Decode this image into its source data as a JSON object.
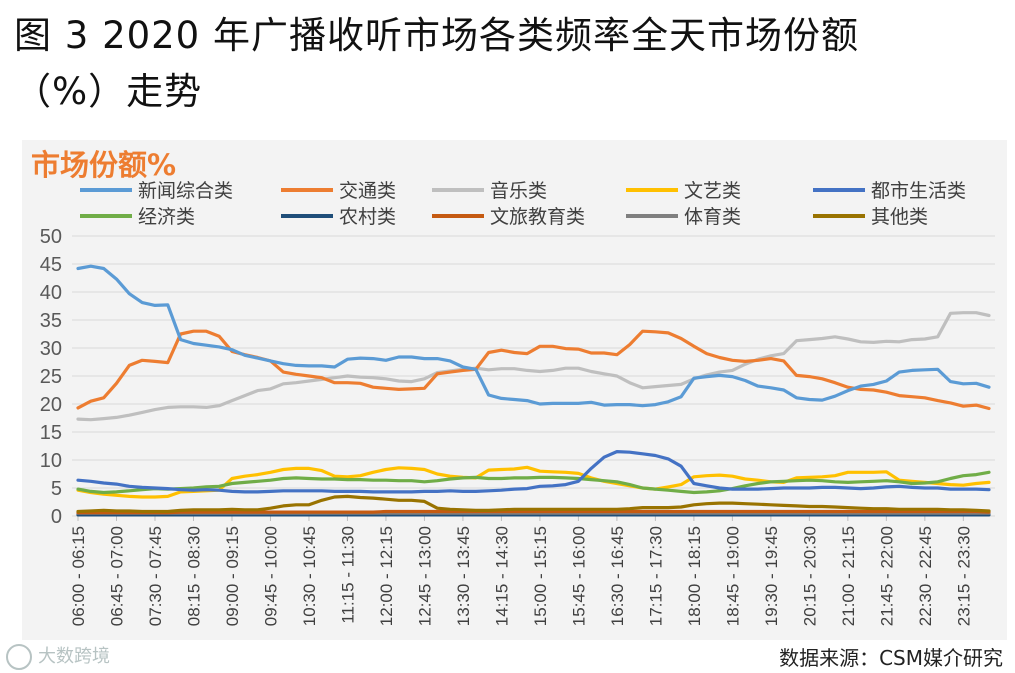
{
  "page": {
    "title_line1": "图 3  2020 年广播收听市场各类频率全天市场份额",
    "title_line2": "（%）走势",
    "source": "数据来源：CSM媒介研究",
    "watermark": "大数跨境"
  },
  "chart_data": {
    "type": "line",
    "title": "",
    "ylabel": "市场份额%",
    "xlabel": "",
    "ylim": [
      0,
      50
    ],
    "yticks": [
      0,
      5,
      10,
      15,
      20,
      25,
      30,
      35,
      40,
      45,
      50
    ],
    "grid": true,
    "legend_position": "top",
    "x_tick_labels": [
      "06:00 - 06:15",
      "06:45 - 07:00",
      "07:30 - 07:45",
      "08:15 - 08:30",
      "09:00 - 09:15",
      "09:45 - 10:00",
      "10:30 - 10:45",
      "11:15 - 11:30",
      "12:00 - 12:15",
      "12:45 - 13:00",
      "13:30 - 13:45",
      "14:15 - 14:30",
      "15:00 - 15:15",
      "15:45 - 16:00",
      "16:30 - 16:45",
      "17:15 - 17:30",
      "18:00 - 18:15",
      "18:45 - 19:00",
      "19:30 - 19:45",
      "20:15 - 20:30",
      "21:00 - 21:15",
      "21:45 - 22:00",
      "22:30 - 22:45",
      "23:15 - 23:30"
    ],
    "series": [
      {
        "name": "新闻综合类",
        "color": "#5b9bd5",
        "values": [
          44.2,
          44.6,
          44.2,
          42.3,
          39.7,
          38.1,
          37.6,
          37.7,
          31.5,
          30.8,
          30.5,
          30.2,
          29.7,
          28.7,
          28.2,
          27.7,
          27.2,
          26.9,
          26.8,
          26.8,
          26.6,
          28.0,
          28.2,
          28.1,
          27.8,
          28.4,
          28.4,
          28.1,
          28.1,
          27.7,
          26.6,
          26.2,
          21.6,
          21.0,
          20.8,
          20.6,
          20.0,
          20.1,
          20.1,
          20.1,
          20.3,
          19.8,
          19.9,
          19.9,
          19.7,
          19.9,
          20.4,
          21.3,
          24.6,
          24.9,
          25.1,
          24.9,
          24.2,
          23.2,
          22.9,
          22.5,
          21.1,
          20.8,
          20.7,
          21.4,
          22.4,
          23.2,
          23.5,
          24.1,
          25.7,
          26.0,
          26.1,
          26.2,
          24.0,
          23.6,
          23.7,
          23.0
        ]
      },
      {
        "name": "交通类",
        "color": "#ed7d31",
        "values": [
          19.3,
          20.5,
          21.1,
          23.7,
          26.9,
          27.8,
          27.6,
          27.4,
          32.5,
          33.0,
          33.0,
          32.1,
          29.4,
          28.8,
          28.3,
          27.7,
          25.7,
          25.3,
          25.0,
          24.7,
          23.8,
          23.8,
          23.7,
          23.0,
          22.8,
          22.6,
          22.7,
          22.8,
          25.4,
          25.7,
          26.0,
          26.2,
          29.2,
          29.6,
          29.2,
          29.0,
          30.3,
          30.3,
          29.9,
          29.8,
          29.1,
          29.1,
          28.8,
          30.6,
          33.0,
          32.9,
          32.7,
          31.7,
          30.3,
          29.0,
          28.3,
          27.8,
          27.6,
          27.8,
          28.1,
          27.7,
          25.1,
          24.9,
          24.5,
          23.8,
          23.0,
          22.6,
          22.5,
          22.1,
          21.5,
          21.3,
          21.1,
          20.6,
          20.2,
          19.6,
          19.8,
          19.2
        ]
      },
      {
        "name": "音乐类",
        "color": "#bfbfbf",
        "values": [
          17.3,
          17.2,
          17.4,
          17.6,
          18.0,
          18.5,
          19.0,
          19.4,
          19.5,
          19.5,
          19.4,
          19.7,
          20.6,
          21.5,
          22.4,
          22.7,
          23.6,
          23.8,
          24.1,
          24.4,
          24.7,
          25.0,
          24.8,
          24.7,
          24.5,
          24.1,
          24.0,
          24.5,
          25.6,
          25.9,
          26.2,
          26.4,
          26.1,
          26.3,
          26.3,
          26.0,
          25.8,
          26.0,
          26.4,
          26.4,
          25.8,
          25.4,
          25.0,
          23.8,
          22.9,
          23.1,
          23.3,
          23.5,
          24.5,
          25.2,
          25.7,
          26.0,
          27.1,
          28.0,
          28.6,
          29.0,
          31.3,
          31.5,
          31.7,
          32.0,
          31.6,
          31.1,
          31.0,
          31.2,
          31.1,
          31.5,
          31.6,
          32.0,
          36.2,
          36.3,
          36.3,
          35.8
        ]
      },
      {
        "name": "文艺类",
        "color": "#ffc000",
        "values": [
          4.6,
          4.2,
          3.9,
          3.7,
          3.5,
          3.4,
          3.4,
          3.5,
          4.3,
          4.4,
          4.5,
          4.6,
          6.7,
          7.1,
          7.4,
          7.8,
          8.3,
          8.5,
          8.5,
          8.1,
          7.1,
          7.0,
          7.2,
          7.8,
          8.3,
          8.6,
          8.5,
          8.3,
          7.5,
          7.1,
          6.9,
          6.8,
          8.2,
          8.3,
          8.4,
          8.7,
          8.0,
          7.9,
          7.8,
          7.6,
          6.8,
          6.2,
          5.8,
          5.4,
          5.0,
          4.8,
          5.2,
          5.6,
          7.0,
          7.2,
          7.3,
          7.1,
          6.6,
          6.4,
          6.1,
          6.0,
          6.8,
          6.9,
          7.0,
          7.2,
          7.8,
          7.8,
          7.8,
          7.9,
          6.4,
          6.2,
          6.0,
          5.8,
          5.6,
          5.5,
          5.8,
          6.0
        ]
      },
      {
        "name": "都市生活类",
        "color": "#4472c4",
        "values": [
          6.4,
          6.2,
          5.9,
          5.7,
          5.3,
          5.1,
          5.0,
          4.9,
          4.7,
          4.6,
          4.7,
          4.6,
          4.4,
          4.3,
          4.3,
          4.4,
          4.5,
          4.5,
          4.5,
          4.5,
          4.4,
          4.4,
          4.4,
          4.3,
          4.3,
          4.3,
          4.3,
          4.4,
          4.4,
          4.5,
          4.4,
          4.4,
          4.5,
          4.6,
          4.8,
          4.9,
          5.3,
          5.4,
          5.6,
          6.2,
          8.5,
          10.5,
          11.5,
          11.4,
          11.1,
          10.8,
          10.2,
          8.9,
          5.8,
          5.4,
          5.0,
          4.8,
          4.8,
          4.8,
          4.9,
          5.0,
          5.0,
          5.0,
          5.1,
          5.1,
          5.0,
          4.9,
          5.0,
          5.2,
          5.3,
          5.1,
          5.0,
          5.0,
          4.8,
          4.8,
          4.8,
          4.7
        ]
      },
      {
        "name": "经济类",
        "color": "#70ad47",
        "values": [
          4.8,
          4.4,
          4.2,
          4.3,
          4.5,
          4.7,
          4.9,
          4.8,
          4.9,
          5.0,
          5.2,
          5.3,
          5.8,
          6.0,
          6.2,
          6.4,
          6.7,
          6.8,
          6.7,
          6.6,
          6.6,
          6.5,
          6.5,
          6.4,
          6.4,
          6.3,
          6.3,
          6.1,
          6.3,
          6.6,
          6.8,
          6.9,
          6.7,
          6.7,
          6.8,
          6.8,
          6.9,
          6.9,
          6.8,
          6.7,
          6.5,
          6.3,
          6.1,
          5.6,
          5.0,
          4.8,
          4.6,
          4.4,
          4.2,
          4.3,
          4.5,
          4.9,
          5.4,
          5.8,
          6.1,
          6.2,
          6.3,
          6.4,
          6.3,
          6.1,
          6.0,
          6.1,
          6.2,
          6.3,
          6.1,
          5.8,
          5.9,
          6.1,
          6.7,
          7.2,
          7.4,
          7.8
        ]
      },
      {
        "name": "农村类",
        "color": "#1f4e79",
        "values": [
          0.2,
          0.2,
          0.2,
          0.2,
          0.2,
          0.2,
          0.2,
          0.2,
          0.2,
          0.2,
          0.2,
          0.2,
          0.2,
          0.2,
          0.2,
          0.2,
          0.2,
          0.2,
          0.2,
          0.2,
          0.2,
          0.2,
          0.2,
          0.2,
          0.2,
          0.2,
          0.2,
          0.2,
          0.2,
          0.2,
          0.2,
          0.2,
          0.2,
          0.2,
          0.2,
          0.2,
          0.2,
          0.2,
          0.2,
          0.2,
          0.2,
          0.2,
          0.2,
          0.2,
          0.2,
          0.2,
          0.2,
          0.2,
          0.2,
          0.2,
          0.2,
          0.2,
          0.2,
          0.2,
          0.2,
          0.2,
          0.2,
          0.2,
          0.2,
          0.2,
          0.2,
          0.2,
          0.2,
          0.2,
          0.2,
          0.2,
          0.2,
          0.2,
          0.2,
          0.2,
          0.2,
          0.2
        ]
      },
      {
        "name": "文旅教育类",
        "color": "#c55a11",
        "values": [
          0.6,
          0.6,
          0.6,
          0.6,
          0.6,
          0.6,
          0.6,
          0.6,
          0.7,
          0.7,
          0.7,
          0.7,
          0.7,
          0.7,
          0.7,
          0.7,
          0.7,
          0.7,
          0.7,
          0.7,
          0.7,
          0.7,
          0.7,
          0.7,
          0.8,
          0.8,
          0.8,
          0.8,
          0.8,
          0.8,
          0.8,
          0.8,
          0.8,
          0.8,
          0.8,
          0.8,
          0.8,
          0.8,
          0.8,
          0.8,
          0.8,
          0.8,
          0.8,
          0.8,
          0.8,
          0.8,
          0.8,
          0.8,
          0.8,
          0.8,
          0.8,
          0.8,
          0.8,
          0.8,
          0.8,
          0.8,
          0.8,
          0.8,
          0.8,
          0.8,
          0.8,
          0.8,
          0.8,
          0.8,
          0.8,
          0.8,
          0.8,
          0.8,
          0.8,
          0.8,
          0.8,
          0.7
        ]
      },
      {
        "name": "体育类",
        "color": "#7f7f7f",
        "values": [
          0.5,
          0.5,
          0.5,
          0.5,
          0.5,
          0.5,
          0.5,
          0.5,
          0.5,
          0.5,
          0.5,
          0.5,
          0.5,
          0.5,
          0.5,
          0.5,
          0.5,
          0.5,
          0.5,
          0.5,
          0.5,
          0.5,
          0.5,
          0.5,
          0.5,
          0.5,
          0.5,
          0.5,
          0.5,
          0.5,
          0.5,
          0.5,
          0.5,
          0.5,
          0.5,
          0.5,
          0.5,
          0.5,
          0.5,
          0.5,
          0.5,
          0.5,
          0.5,
          0.5,
          0.5,
          0.5,
          0.5,
          0.5,
          0.5,
          0.5,
          0.5,
          0.5,
          0.5,
          0.5,
          0.5,
          0.5,
          0.5,
          0.5,
          0.5,
          0.5,
          0.5,
          0.5,
          0.5,
          0.5,
          0.5,
          0.5,
          0.5,
          0.5,
          0.5,
          0.5,
          0.5,
          0.5
        ]
      },
      {
        "name": "其他类",
        "color": "#997300",
        "values": [
          0.8,
          0.9,
          1.0,
          0.9,
          0.9,
          0.8,
          0.8,
          0.8,
          1.0,
          1.1,
          1.1,
          1.1,
          1.2,
          1.1,
          1.1,
          1.4,
          1.8,
          2.0,
          2.0,
          2.8,
          3.4,
          3.5,
          3.3,
          3.2,
          3.0,
          2.8,
          2.8,
          2.6,
          1.4,
          1.2,
          1.1,
          1.0,
          1.0,
          1.1,
          1.2,
          1.2,
          1.2,
          1.2,
          1.2,
          1.2,
          1.2,
          1.2,
          1.2,
          1.3,
          1.5,
          1.5,
          1.5,
          1.6,
          2.0,
          2.2,
          2.3,
          2.3,
          2.2,
          2.1,
          2.0,
          1.9,
          1.8,
          1.7,
          1.7,
          1.6,
          1.5,
          1.4,
          1.3,
          1.3,
          1.2,
          1.2,
          1.2,
          1.2,
          1.1,
          1.1,
          1.0,
          0.9
        ]
      }
    ]
  }
}
